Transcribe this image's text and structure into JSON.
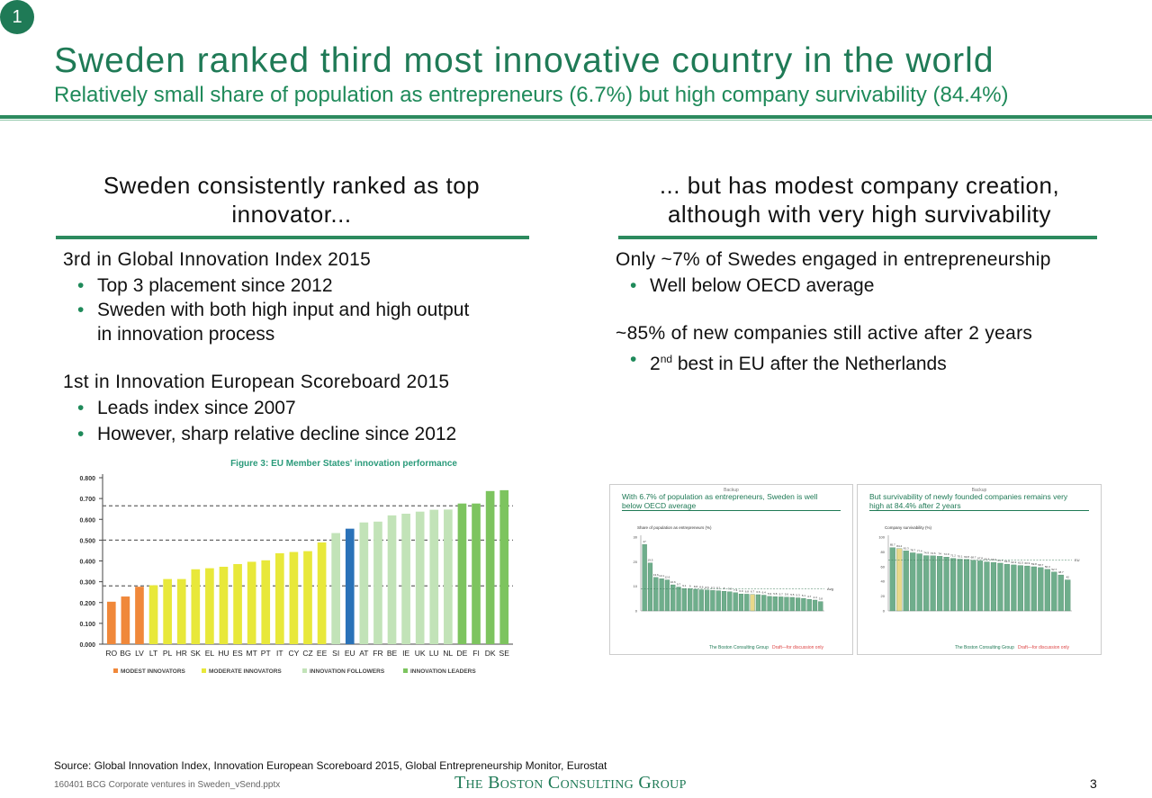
{
  "slide_badge": "1",
  "title": "Sweden ranked third most innovative country in the world",
  "subtitle": "Relatively small share of population as entrepreneurs (6.7%) but high company survivability (84.4%)",
  "left": {
    "heading_line1": "Sweden consistently ranked as top",
    "heading_line2": "innovator...",
    "block1": {
      "title": "3rd in Global Innovation Index 2015",
      "bullets": [
        "Top 3 placement since 2012",
        "Sweden with both high input and high output",
        "in innovation process"
      ]
    },
    "block2": {
      "title": "1st in Innovation European Scoreboard 2015",
      "bullets": [
        "Leads index since 2007",
        "However, sharp relative decline since 2012"
      ]
    }
  },
  "right": {
    "heading_line1": "... but has modest company creation,",
    "heading_line2": "although with very high survivability",
    "block1": {
      "title": "Only ~7% of Swedes engaged in entrepreneurship",
      "bullets": [
        "Well below OECD average"
      ]
    },
    "block2": {
      "title": "~85% of new companies still active after 2 years",
      "bullet_sup": "nd",
      "bullet_num": "2",
      "bullet_rest": " best in EU after the Netherlands"
    }
  },
  "bullet_glyph": "•",
  "colors": {
    "accent": "#1f7a56",
    "modest": "#f0883a",
    "moderate": "#e8e83a",
    "follower": "#c2e3b8",
    "leader": "#7dc45f",
    "sweden_highlight": "#2a72b8"
  },
  "chart_data": [
    {
      "type": "bar",
      "title": "Figure 3: EU Member States' innovation performance",
      "categories": [
        "RO",
        "BG",
        "LV",
        "LT",
        "PL",
        "HR",
        "SK",
        "EL",
        "HU",
        "ES",
        "MT",
        "PT",
        "IT",
        "CY",
        "CZ",
        "EE",
        "SI",
        "EU",
        "AT",
        "FR",
        "BE",
        "IE",
        "UK",
        "LU",
        "NL",
        "DE",
        "FI",
        "DK",
        "SE"
      ],
      "values": [
        0.204,
        0.229,
        0.276,
        0.283,
        0.313,
        0.313,
        0.36,
        0.365,
        0.372,
        0.385,
        0.396,
        0.403,
        0.437,
        0.443,
        0.447,
        0.489,
        0.534,
        0.555,
        0.585,
        0.589,
        0.619,
        0.627,
        0.637,
        0.646,
        0.647,
        0.676,
        0.676,
        0.736,
        0.74
      ],
      "groups": [
        "modest",
        "modest",
        "modest",
        "moderate",
        "moderate",
        "moderate",
        "moderate",
        "moderate",
        "moderate",
        "moderate",
        "moderate",
        "moderate",
        "moderate",
        "moderate",
        "moderate",
        "moderate",
        "follower",
        "highlight",
        "follower",
        "follower",
        "follower",
        "follower",
        "follower",
        "follower",
        "follower",
        "leader",
        "leader",
        "leader",
        "leader"
      ],
      "yticks": [
        "0.000",
        "0.100",
        "0.200",
        "0.300",
        "0.400",
        "0.500",
        "0.600",
        "0.700",
        "0.800"
      ],
      "ylim": [
        0,
        0.8
      ],
      "reference_lines": [
        0.28,
        0.5,
        0.665
      ],
      "legend": [
        "MODEST INNOVATORS",
        "MODERATE INNOVATORS",
        "INNOVATION FOLLOWERS",
        "INNOVATION LEADERS"
      ],
      "legend_placement": "bottom",
      "grid": false
    },
    {
      "type": "bar",
      "tag": "Backup",
      "title_line1": "With 6.7% of population as entrepreneurs, Sweden is well",
      "title_line2": "below OECD average",
      "ylabel": "Share of population as entrepreneurs (%)",
      "yticks": [
        "0",
        "10",
        "20",
        "30"
      ],
      "ylim": [
        0,
        30
      ],
      "values": [
        27.0,
        19.5,
        13.6,
        13.1,
        12.6,
        10.6,
        9.7,
        9.1,
        9.0,
        8.8,
        8.6,
        8.5,
        8.3,
        8.2,
        8.0,
        7.8,
        7.4,
        6.9,
        6.8,
        6.7,
        6.6,
        6.4,
        5.9,
        5.8,
        5.7,
        5.6,
        5.5,
        5.3,
        5.1,
        4.7,
        4.4,
        3.8
      ],
      "highlight_index": 19,
      "reference": 9.0,
      "reference_label": "Avg",
      "footer_bcg": "The Boston Consulting Group",
      "footer_draft": "Draft—for discussion only"
    },
    {
      "type": "bar",
      "tag": "Backup",
      "title_line1": "But survivability of newly founded companies remains very",
      "title_line2": "high at 84.4% after 2 years",
      "ylabel": "Company survivability (%)",
      "yticks": [
        "0",
        "20",
        "40",
        "60",
        "80",
        "100"
      ],
      "ylim": [
        0,
        100
      ],
      "values": [
        85.7,
        84.4,
        81.3,
        78.7,
        77.4,
        74.9,
        74.6,
        74.0,
        72.9,
        71.2,
        70.1,
        69.8,
        68.7,
        67.8,
        66.4,
        65.6,
        64.7,
        63.3,
        62.3,
        61.5,
        60.9,
        59.8,
        58.7,
        56.3,
        52.7,
        48.7,
        42.0
      ],
      "highlight_index": 1,
      "reference": 68.7,
      "reference_label": "EU",
      "footer_bcg": "The Boston Consulting Group",
      "footer_draft": "Draft—for discussion only"
    }
  ],
  "source": "Source: Global Innovation Index, Innovation European Scoreboard 2015, Global Entrepreneurship Monitor, Eurostat",
  "footer_file": "160401 BCG Corporate ventures in Sweden_vSend.pptx",
  "logo_text": "The Boston Consulting Group",
  "page_number": "3"
}
